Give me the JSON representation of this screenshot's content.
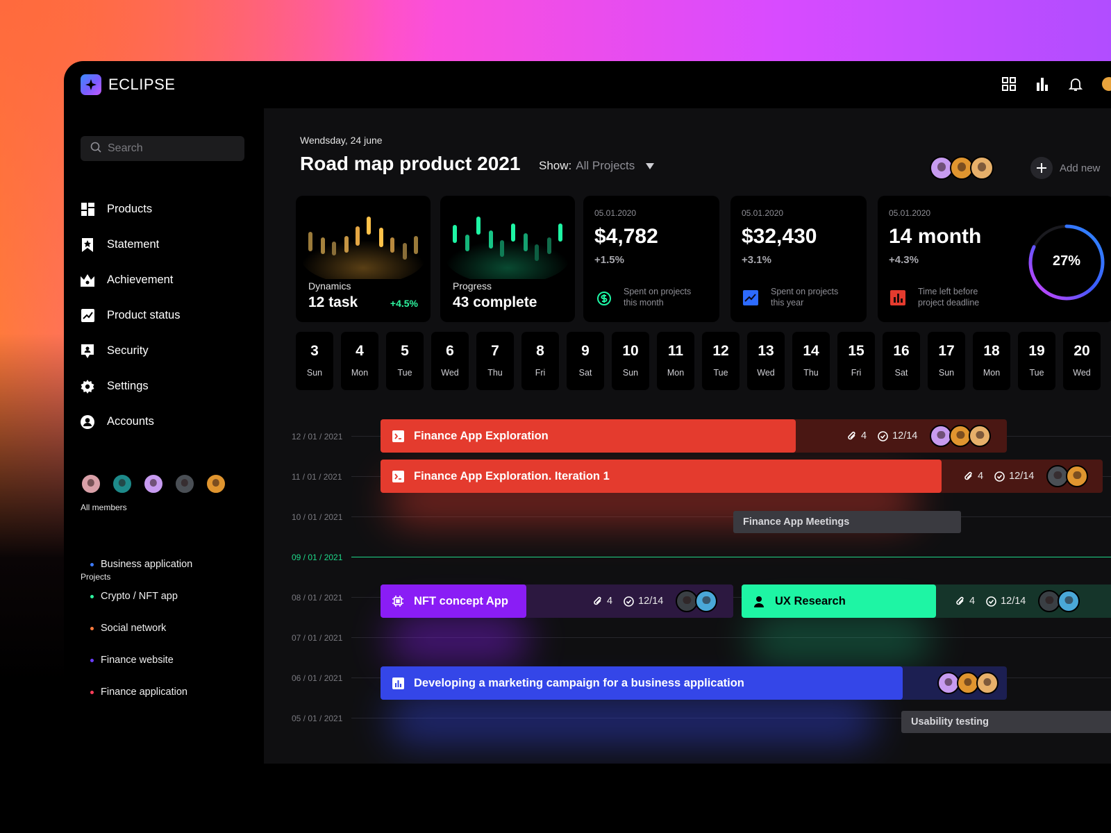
{
  "brand": {
    "name": "ECLIPSE"
  },
  "search": {
    "placeholder": "Search"
  },
  "nav": [
    {
      "label": "Products",
      "icon": "grid-icon"
    },
    {
      "label": "Statement",
      "icon": "bookmark-star-icon"
    },
    {
      "label": "Achievement",
      "icon": "crown-icon"
    },
    {
      "label": "Product status",
      "icon": "trend-icon"
    },
    {
      "label": "Security",
      "icon": "shield-icon"
    },
    {
      "label": "Settings",
      "icon": "gear-icon"
    },
    {
      "label": "Accounts",
      "icon": "user-circle-icon"
    }
  ],
  "members_title": "All members",
  "projects_title": "Projects",
  "projects": [
    {
      "label": "Business application",
      "color": "#3d7bff"
    },
    {
      "label": "Crypto / NFT app",
      "color": "#2ef5a0"
    },
    {
      "label": "Social network",
      "color": "#ff7b3d"
    },
    {
      "label": "Finance website",
      "color": "#6a3dff"
    },
    {
      "label": "Finance application",
      "color": "#ff3d5a"
    }
  ],
  "header": {
    "date": "Wendsday, 24 june",
    "title": "Road map product 2021",
    "show_label": "Show:",
    "show_value": "All Projects",
    "add_new": "Add new"
  },
  "cards": {
    "dynamics": {
      "label": "Dynamics",
      "value": "12 task",
      "change": "+4.5%"
    },
    "progress": {
      "label": "Progress",
      "value": "43 complete"
    },
    "month": {
      "date": "05.01.2020",
      "amount": "$4,782",
      "change": "+1.5%",
      "desc": "Spent on projects this month"
    },
    "year": {
      "date": "05.01.2020",
      "amount": "$32,430",
      "change": "+3.1%",
      "desc": "Spent on projects this year"
    },
    "deadline": {
      "date": "05.01.2020",
      "amount": "14 month",
      "change": "+4.3%",
      "desc": "Time left before project deadline",
      "percent": "27%",
      "percent_value": 27
    }
  },
  "days": [
    {
      "n": "3",
      "w": "Sun"
    },
    {
      "n": "4",
      "w": "Mon"
    },
    {
      "n": "5",
      "w": "Tue"
    },
    {
      "n": "6",
      "w": "Wed"
    },
    {
      "n": "7",
      "w": "Thu"
    },
    {
      "n": "8",
      "w": "Fri"
    },
    {
      "n": "9",
      "w": "Sat"
    },
    {
      "n": "10",
      "w": "Sun"
    },
    {
      "n": "11",
      "w": "Mon"
    },
    {
      "n": "12",
      "w": "Tue"
    },
    {
      "n": "13",
      "w": "Wed"
    },
    {
      "n": "14",
      "w": "Thu"
    },
    {
      "n": "15",
      "w": "Fri"
    },
    {
      "n": "16",
      "w": "Sat"
    },
    {
      "n": "17",
      "w": "Sun"
    },
    {
      "n": "18",
      "w": "Mon"
    },
    {
      "n": "19",
      "w": "Tue"
    },
    {
      "n": "20",
      "w": "Wed"
    }
  ],
  "timeline_dates": [
    "12 / 01 / 2021",
    "11 / 01 / 2021",
    "10 / 01 / 2021",
    "09 / 01 / 2021",
    "08 / 01 / 2021",
    "07 / 01 / 2021",
    "06 / 01 / 2021",
    "05 / 01 / 2021"
  ],
  "tasks": {
    "t1": {
      "title": "Finance App Exploration",
      "attachments": "4",
      "checks": "12/14"
    },
    "t2": {
      "title": "Finance App Exploration. Iteration 1",
      "attachments": "4",
      "checks": "12/14"
    },
    "t3": {
      "title": "Finance App Meetings"
    },
    "t4": {
      "title": "NFT concept App",
      "attachments": "4",
      "checks": "12/14"
    },
    "t5": {
      "title": "UX Research",
      "attachments": "4",
      "checks": "12/14"
    },
    "t6": {
      "title": "Developing a marketing campaign for a business application"
    },
    "t7": {
      "title": "Usability testing"
    }
  },
  "colors": {
    "red": "#e43b2e",
    "purple": "#8a1df5",
    "green": "#1ef5a4",
    "blue": "#3446e8",
    "accent_green": "#1fd98a"
  }
}
